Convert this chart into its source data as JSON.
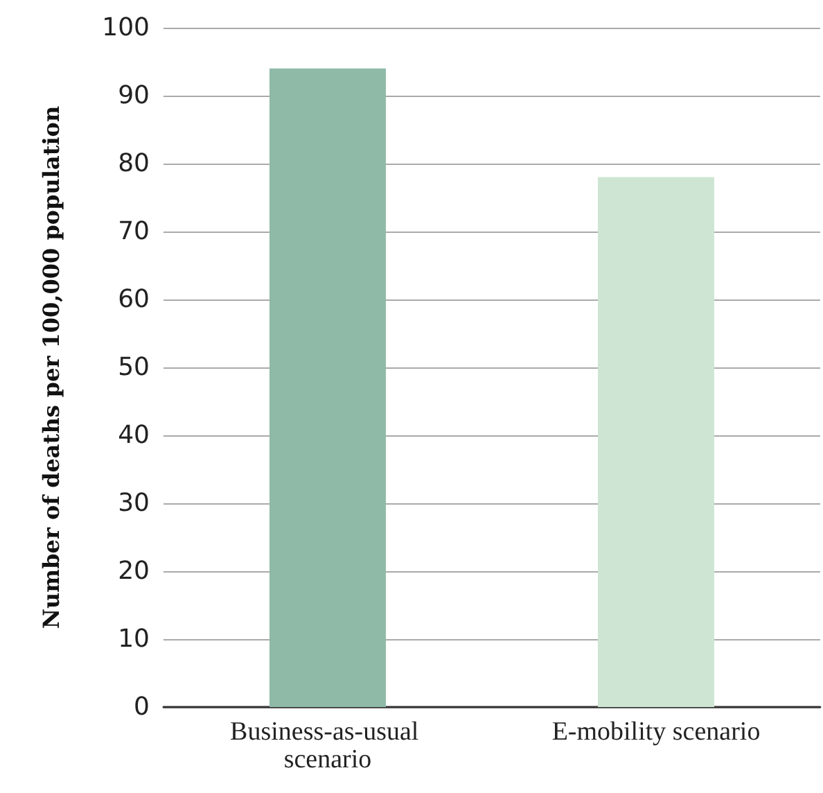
{
  "chart_data": {
    "type": "bar",
    "ylabel": "Number of deaths per 100,000 population",
    "categories": [
      "Business-as-usual scenario",
      "E-mobility scenario"
    ],
    "values": [
      94,
      78
    ],
    "colors": [
      "#8fbaa8",
      "#cee5d3"
    ],
    "ylim": [
      0,
      100
    ],
    "yticks": [
      0,
      10,
      20,
      30,
      40,
      50,
      60,
      70,
      80,
      90,
      100
    ],
    "grid": "y"
  }
}
